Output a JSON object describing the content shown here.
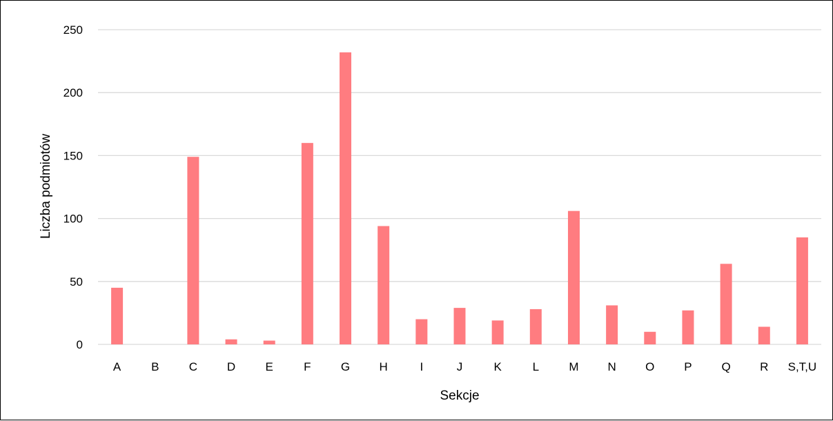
{
  "chart_data": {
    "type": "bar",
    "xlabel": "Sekcje",
    "ylabel": "Liczba podmiotów",
    "categories": [
      "A",
      "B",
      "C",
      "D",
      "E",
      "F",
      "G",
      "H",
      "I",
      "J",
      "K",
      "L",
      "M",
      "N",
      "O",
      "P",
      "Q",
      "R",
      "S,T,U"
    ],
    "values": [
      45,
      0,
      149,
      4,
      3,
      160,
      232,
      94,
      20,
      29,
      19,
      28,
      106,
      31,
      10,
      27,
      64,
      14,
      85
    ],
    "ylim": [
      0,
      250
    ],
    "yticks": [
      "0",
      "50",
      "100",
      "150",
      "200",
      "250"
    ],
    "grid": true,
    "legend": "none",
    "bar_color": "#ff7c80",
    "grid_color": "#d9d9d9"
  }
}
